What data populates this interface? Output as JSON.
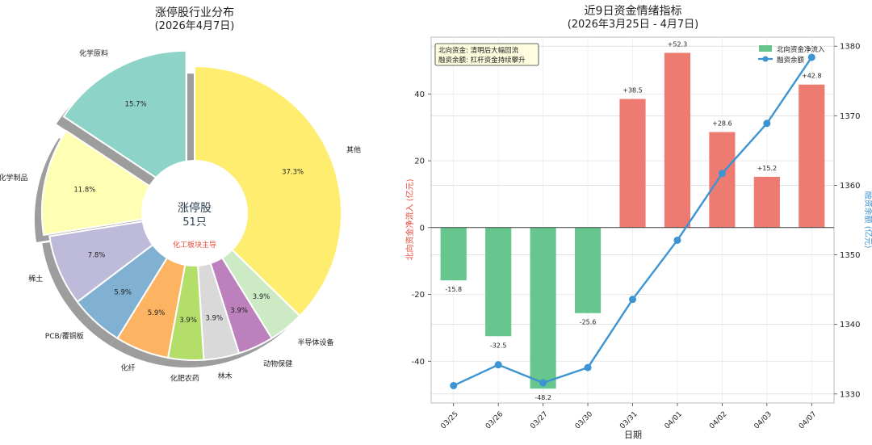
{
  "chart_data": [
    {
      "type": "pie",
      "title": "涨停股行业分布",
      "subtitle": "(2026年4月7日)",
      "center_title": "涨停股",
      "center_count": "51只",
      "center_note": "化工板块主导",
      "slices": [
        {
          "label": "其他",
          "value": 37.3,
          "pct_label": "37.3%",
          "color": "#ffed6f"
        },
        {
          "label": "半导体设备",
          "value": 3.9,
          "pct_label": "3.9%",
          "color": "#ccebc5"
        },
        {
          "label": "动物保健",
          "value": 3.9,
          "pct_label": "3.9%",
          "color": "#bc80bd"
        },
        {
          "label": "林木",
          "value": 3.9,
          "pct_label": "3.9%",
          "color": "#d9d9d9"
        },
        {
          "label": "化肥农药",
          "value": 3.9,
          "pct_label": "3.9%",
          "color": "#b3de69"
        },
        {
          "label": "化纤",
          "value": 5.9,
          "pct_label": "5.9%",
          "color": "#fdb462"
        },
        {
          "label": "PCB/覆铜板",
          "value": 5.9,
          "pct_label": "5.9%",
          "color": "#80b1d3"
        },
        {
          "label": "稀土",
          "value": 7.8,
          "pct_label": "7.8%",
          "color": "#bebada"
        },
        {
          "label": "化学制品",
          "value": 11.8,
          "pct_label": "11.8%",
          "color": "#ffffb3",
          "explode": 0.04
        },
        {
          "label": "化学原料",
          "value": 15.7,
          "pct_label": "15.7%",
          "color": "#8dd3c7",
          "explode": 0.12
        }
      ]
    },
    {
      "type": "bar+line",
      "title": "近9日资金情绪指标",
      "subtitle": "(2026年3月25日 - 4月7日)",
      "xlabel": "日期",
      "ylabel_left": "北向资金净流入 (亿元)",
      "ylabel_right": "融资余额 (亿元)",
      "categories": [
        "03/25",
        "03/26",
        "03/27",
        "03/30",
        "03/31",
        "04/01",
        "04/02",
        "04/03",
        "04/07"
      ],
      "bar_series": {
        "name": "北向资金净流入",
        "values": [
          -15.8,
          -32.5,
          -48.2,
          -25.6,
          38.5,
          52.3,
          28.6,
          15.2,
          42.8
        ],
        "labels": [
          "-15.8",
          "-32.5",
          "-48.2",
          "-25.6",
          "+38.5",
          "+52.3",
          "+28.6",
          "+15.2",
          "+42.8"
        ],
        "pos_color": "#ed7b72",
        "neg_color": "#66c68e"
      },
      "line_series": {
        "name": "融资余额",
        "values": [
          1331.2,
          1334.2,
          1331.6,
          1333.8,
          1343.6,
          1352.1,
          1361.7,
          1368.9,
          1378.4
        ],
        "color": "#3d94d2"
      },
      "ylim_left": [
        -52.5,
        57
      ],
      "yticks_left": [
        -40,
        -20,
        0,
        20,
        40
      ],
      "ylim_right": [
        1328.7,
        1381.3
      ],
      "yticks_right": [
        1330,
        1340,
        1350,
        1360,
        1370,
        1380
      ],
      "annotation_lines": [
        "北向资金: 清明后大幅回流",
        "融资余额: 杠杆资金持续攀升"
      ],
      "legend": [
        "北向资金净流入",
        "融资余额"
      ],
      "legend_position": "top-right",
      "grid": true
    }
  ]
}
